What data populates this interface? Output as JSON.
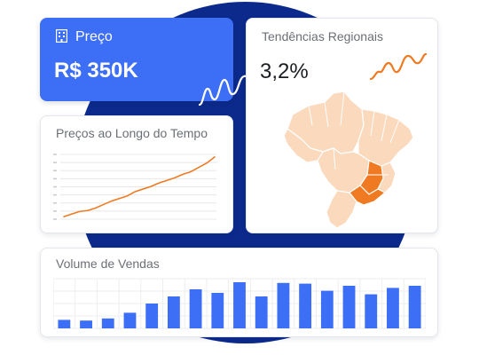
{
  "price_card": {
    "label": "Preço",
    "value": "R$ 350K",
    "icon": "building-icon"
  },
  "regional_card": {
    "title": "Tendências Regionais",
    "value": "3,2%",
    "map_icon": "brazil-map",
    "highlight_color": "#f07a22",
    "base_color": "#fbd9bd"
  },
  "time_card": {
    "title": "Preços ao Longo do Tempo",
    "line_color": "#f07a22"
  },
  "volume_card": {
    "title": "Volume de Vendas",
    "bar_color": "#3c6ef6"
  },
  "chart_data": [
    {
      "type": "line",
      "title": "Preços ao Longo do Tempo",
      "x": [
        1,
        2,
        3,
        4,
        5,
        6,
        7,
        8,
        9,
        10,
        11,
        12,
        13,
        14,
        15,
        16,
        17,
        18,
        19,
        20
      ],
      "values": [
        3,
        6,
        9,
        10,
        13,
        17,
        21,
        24,
        27,
        32,
        35,
        38,
        42,
        45,
        48,
        52,
        55,
        60,
        65,
        72
      ],
      "ylim": [
        0,
        75
      ],
      "grid": true
    },
    {
      "type": "bar",
      "title": "Volume de Vendas",
      "values": [
        12,
        11,
        14,
        22,
        35,
        45,
        55,
        50,
        65,
        45,
        64,
        63,
        53,
        60,
        48,
        57,
        60
      ],
      "ylim": [
        0,
        70
      ],
      "grid": true
    }
  ],
  "colors": {
    "accent": "#3c6ef6",
    "orange": "#f07a22",
    "navy": "#0b2a8c"
  }
}
